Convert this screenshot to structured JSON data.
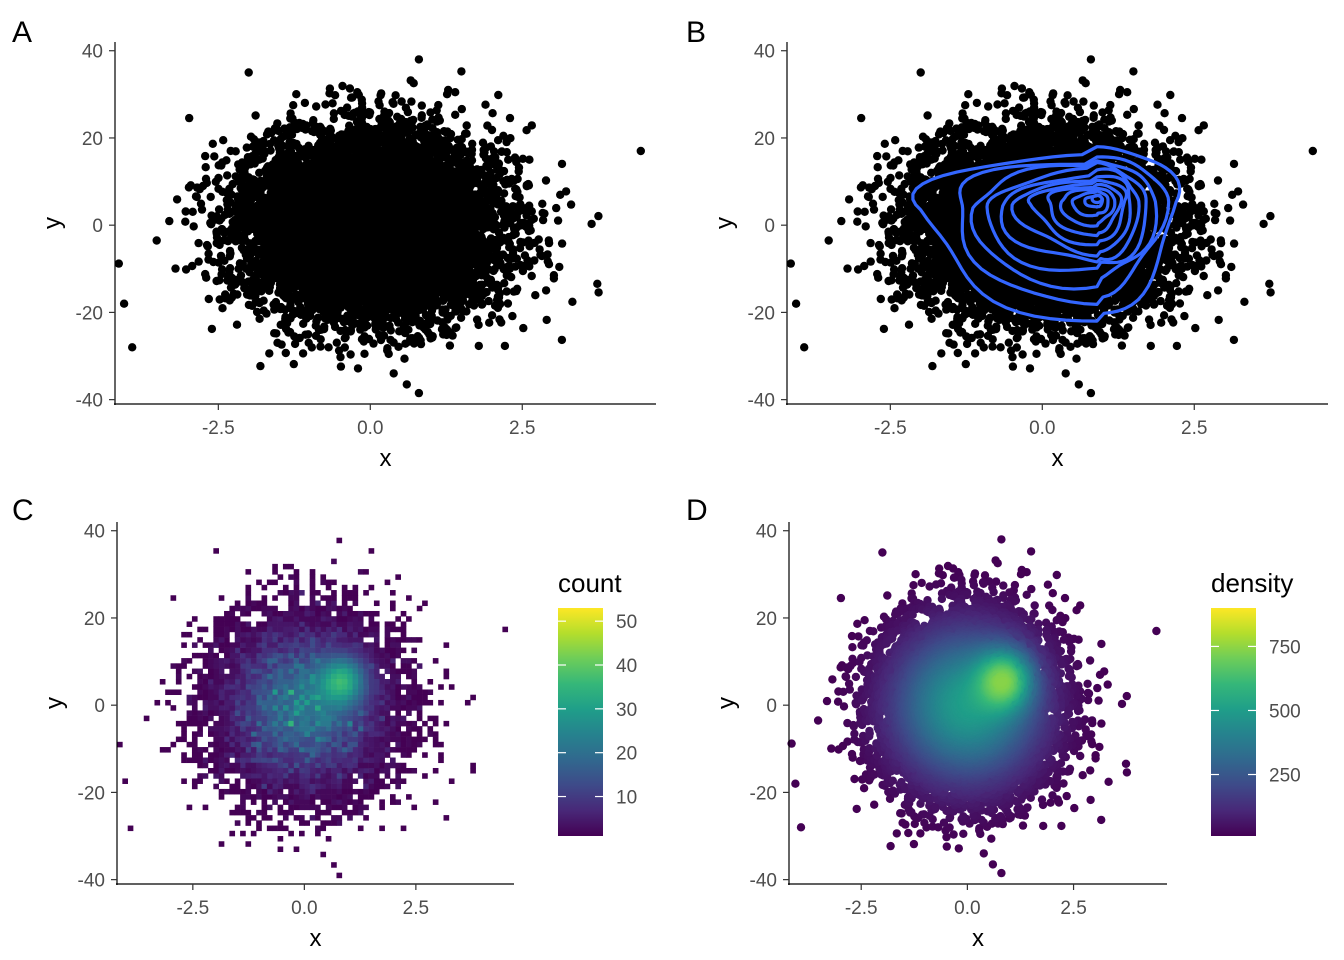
{
  "chart_data": [
    {
      "panel": "A",
      "type": "scatter",
      "xlabel": "x",
      "ylabel": "y",
      "xlim": [
        -4.2,
        4.7
      ],
      "ylim": [
        -41,
        42
      ],
      "xticks": [
        -2.5,
        0.0,
        2.5
      ],
      "xtick_labels": [
        "-2.5",
        "0.0",
        "2.5"
      ],
      "yticks": [
        -40,
        -20,
        0,
        20,
        40
      ],
      "ytick_labels": [
        "-40",
        "-20",
        "0",
        "20",
        "40"
      ],
      "points": {
        "n": 10000,
        "x_mean": 0.0,
        "x_sd": 1.0,
        "y_mean": 0.0,
        "y_sd": 10.0,
        "color": "#000000"
      },
      "grid": false,
      "legend": "none"
    },
    {
      "panel": "B",
      "type": "scatter",
      "xlabel": "x",
      "ylabel": "y",
      "xlim": [
        -4.2,
        4.7
      ],
      "ylim": [
        -41,
        42
      ],
      "xticks": [
        -2.5,
        0.0,
        2.5
      ],
      "xtick_labels": [
        "-2.5",
        "0.0",
        "2.5"
      ],
      "yticks": [
        -40,
        -20,
        0,
        20,
        40
      ],
      "ytick_labels": [
        "-40",
        "-20",
        "0",
        "20",
        "40"
      ],
      "points": {
        "n": 10000,
        "x_mean": 0.0,
        "x_sd": 1.0,
        "y_mean": 0.0,
        "y_sd": 10.0,
        "color": "#000000"
      },
      "overlay": {
        "type": "density2d_contours",
        "color": "#3366FF",
        "peak": [
          0.9,
          6
        ],
        "outer_extent_x": [
          -2.0,
          2.2
        ],
        "outer_extent_y": [
          -19,
          19
        ],
        "levels": 12
      },
      "grid": false,
      "legend": "none"
    },
    {
      "panel": "C",
      "type": "heatmap",
      "xlabel": "x",
      "ylabel": "y",
      "xlim": [
        -4.2,
        4.7
      ],
      "ylim": [
        -41,
        42
      ],
      "xticks": [
        -2.5,
        0.0,
        2.5
      ],
      "xtick_labels": [
        "-2.5",
        "0.0",
        "2.5"
      ],
      "yticks": [
        -40,
        -20,
        0,
        20,
        40
      ],
      "ytick_labels": [
        "-40",
        "-20",
        "0",
        "20",
        "40"
      ],
      "bins": {
        "x_width": 0.12,
        "y_width": 1.2
      },
      "fill_variable": "count",
      "legend": {
        "title": "count",
        "position": "right",
        "range": [
          1,
          53
        ],
        "breaks": [
          10,
          20,
          30,
          40,
          50
        ],
        "labels": [
          "10",
          "20",
          "30",
          "40",
          "50"
        ]
      },
      "peak": [
        0.9,
        6
      ],
      "grid": false
    },
    {
      "panel": "D",
      "type": "scatter",
      "xlabel": "x",
      "ylabel": "y",
      "xlim": [
        -4.2,
        4.7
      ],
      "ylim": [
        -41,
        42
      ],
      "xticks": [
        -2.5,
        0.0,
        2.5
      ],
      "xtick_labels": [
        "-2.5",
        "0.0",
        "2.5"
      ],
      "yticks": [
        -40,
        -20,
        0,
        20,
        40
      ],
      "ytick_labels": [
        "-40",
        "-20",
        "0",
        "20",
        "40"
      ],
      "color_variable": "density",
      "legend": {
        "title": "density",
        "position": "right",
        "range": [
          10,
          900
        ],
        "breaks": [
          250,
          500,
          750
        ],
        "labels": [
          "250",
          "500",
          "750"
        ]
      },
      "peak": [
        0.9,
        6
      ],
      "grid": false
    }
  ],
  "panel_tags": [
    "A",
    "B",
    "C",
    "D"
  ],
  "colors": {
    "points": "#000000",
    "contour": "#3366FF",
    "axis": "#000000",
    "tick_label": "#4D4D4D",
    "viridis": [
      "#440154",
      "#482878",
      "#3E4A89",
      "#31688E",
      "#26828E",
      "#1F9E89",
      "#35B779",
      "#6DCD59",
      "#B4DE2C",
      "#FDE725"
    ]
  }
}
